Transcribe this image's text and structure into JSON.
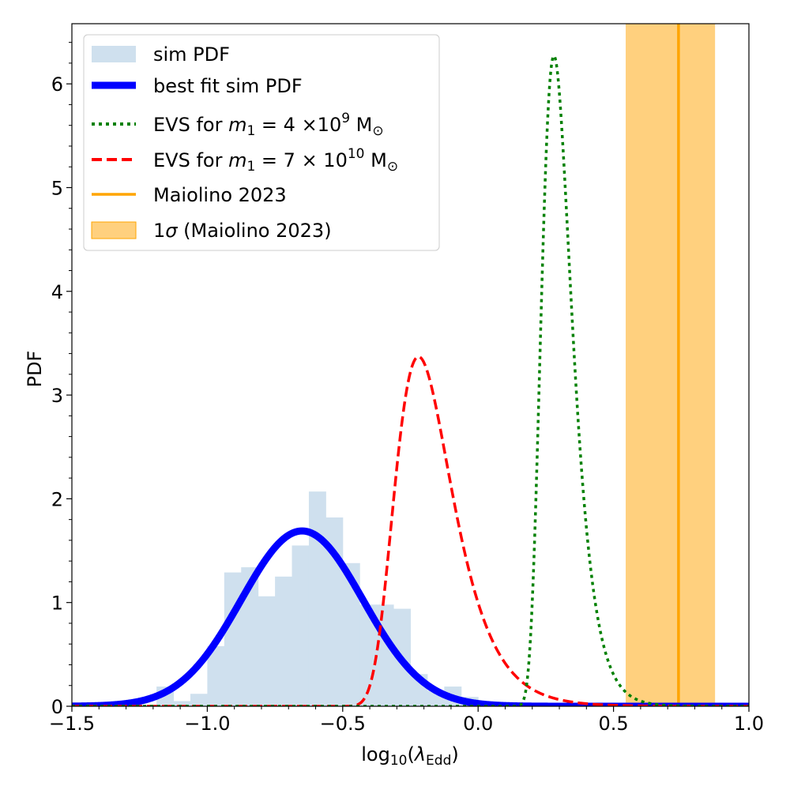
{
  "chart_data": {
    "type": "line",
    "title": "",
    "xlabel": "log10(λEdd)",
    "xlabel_base": "log",
    "xlabel_sub10": "10",
    "xlabel_open": "(",
    "xlabel_lambda": "λ",
    "xlabel_sub": "Edd",
    "xlabel_close": ")",
    "ylabel": "PDF",
    "xlim": [
      -1.5,
      1.0
    ],
    "ylim": [
      0,
      6.58
    ],
    "xticks": [
      -1.5,
      -1.0,
      -0.5,
      0.0,
      0.5,
      1.0
    ],
    "xtick_labels": [
      "−1.5",
      "−1.0",
      "−0.5",
      "0.0",
      "0.5",
      "1.0"
    ],
    "yticks": [
      0,
      1,
      2,
      3,
      4,
      5,
      6
    ],
    "ytick_labels": [
      "0",
      "1",
      "2",
      "3",
      "4",
      "5",
      "6"
    ],
    "colors": {
      "hist": "#cfe0ee",
      "best_fit": "#0000ff",
      "evs1": "#008000",
      "evs2": "#ff0000",
      "maiolino": "#ffa500",
      "band": "#ffd07e"
    },
    "histogram": {
      "name": "sim PDF",
      "bin_width": 0.0625,
      "bins": [
        [
          -1.1875,
          0.19
        ],
        [
          -1.125,
          0.05
        ],
        [
          -1.0625,
          0.12
        ],
        [
          -1.0,
          0.58
        ],
        [
          -0.9375,
          1.29
        ],
        [
          -0.875,
          1.34
        ],
        [
          -0.8125,
          1.06
        ],
        [
          -0.75,
          1.25
        ],
        [
          -0.6875,
          1.55
        ],
        [
          -0.625,
          2.07
        ],
        [
          -0.5625,
          1.82
        ],
        [
          -0.5,
          1.38
        ],
        [
          -0.4375,
          0.98
        ],
        [
          -0.375,
          0.98
        ],
        [
          -0.3125,
          0.94
        ],
        [
          -0.25,
          0.31
        ],
        [
          -0.1875,
          0.15
        ],
        [
          -0.125,
          0.19
        ],
        [
          -0.0625,
          0.09
        ],
        [
          0.0,
          0.02
        ]
      ]
    },
    "best_fit": {
      "name": "best fit sim PDF",
      "mu": -0.65,
      "sigma": 0.225,
      "peak": 1.69
    },
    "evs_1": {
      "name": "EVS for m1 = 4 ×10^9 M⊙",
      "mode": 0.28,
      "beta": 0.055,
      "peak": 6.27
    },
    "evs_2": {
      "name": "EVS for m1 = 7 × 10^10 M⊙",
      "mode": -0.22,
      "beta": 0.105,
      "peak": 3.37
    },
    "maiolino": {
      "name": "Maiolino 2023",
      "x": 0.74
    },
    "band": {
      "name": "1σ (Maiolino 2023)",
      "x0": 0.545,
      "x1": 0.875
    },
    "legend": {
      "location": "top-left",
      "items": [
        {
          "kind": "hist",
          "label": "sim PDF"
        },
        {
          "kind": "best_fit",
          "label": "best fit sim PDF"
        },
        {
          "kind": "evs1",
          "label_prefix": "EVS for ",
          "label_math": "m",
          "label_sub": "1",
          "label_eq": " = 4 ×10",
          "label_sup": "9",
          "label_unit": " M",
          "label_sun": "⊙"
        },
        {
          "kind": "evs2",
          "label_prefix": "EVS for ",
          "label_math": "m",
          "label_sub": "1",
          "label_eq": " = 7 × 10",
          "label_sup": "10",
          "label_unit": " M",
          "label_sun": "⊙"
        },
        {
          "kind": "maiolino",
          "label": "Maiolino 2023"
        },
        {
          "kind": "band",
          "label_prefix": "1",
          "label_sigma": "σ",
          "label_rest": " (Maiolino 2023)"
        }
      ]
    }
  }
}
